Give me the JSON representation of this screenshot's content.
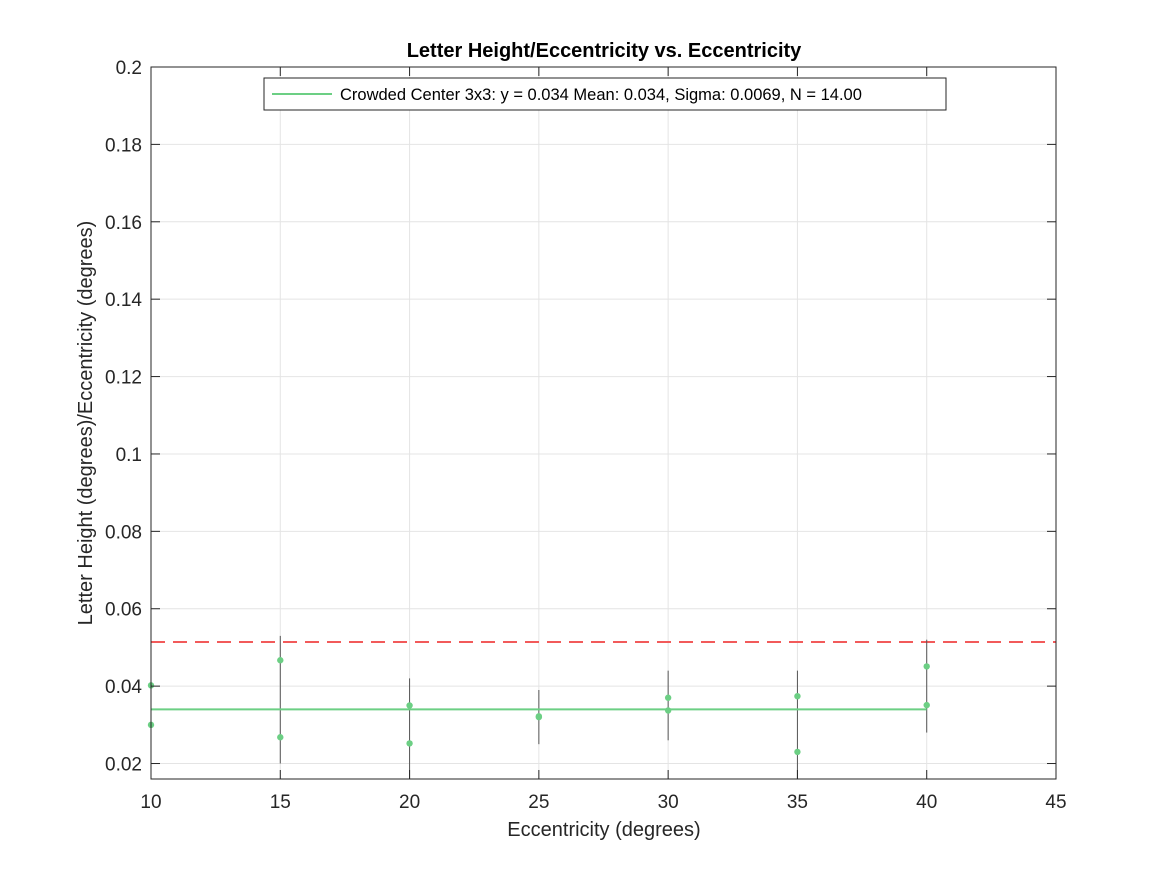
{
  "chart_data": {
    "type": "scatter",
    "title": "Letter Height/Eccentricity vs. Eccentricity",
    "xlabel": "Eccentricity (degrees)",
    "ylabel": "Letter Height (degrees)/Eccentricity (degrees)",
    "xlim": [
      10,
      45
    ],
    "ylim": [
      0.016,
      0.2
    ],
    "xticks": [
      10,
      15,
      20,
      25,
      30,
      35,
      40,
      45
    ],
    "xtick_labels": [
      "10",
      "15",
      "20",
      "25",
      "30",
      "35",
      "40",
      "45"
    ],
    "yticks": [
      0.02,
      0.04,
      0.06,
      0.08,
      0.1,
      0.12,
      0.14,
      0.16,
      0.18,
      0.2
    ],
    "ytick_labels": [
      "0.02",
      "0.04",
      "0.06",
      "0.08",
      "0.1",
      "0.12",
      "0.14",
      "0.16",
      "0.18",
      "0.2"
    ],
    "grid": true,
    "legend_position": "top-center",
    "legend": [
      "Crowded Center 3x3: y = 0.034 Mean: 0.034, Sigma: 0.0069, N = 14.00"
    ],
    "points": [
      {
        "x": 10,
        "y": 0.0402
      },
      {
        "x": 10,
        "y": 0.03
      },
      {
        "x": 15,
        "y": 0.0467
      },
      {
        "x": 15,
        "y": 0.0268
      },
      {
        "x": 20,
        "y": 0.035
      },
      {
        "x": 20,
        "y": 0.0252
      },
      {
        "x": 25,
        "y": 0.0322
      },
      {
        "x": 25,
        "y": 0.032
      },
      {
        "x": 30,
        "y": 0.037
      },
      {
        "x": 30,
        "y": 0.0337
      },
      {
        "x": 35,
        "y": 0.0374
      },
      {
        "x": 35,
        "y": 0.023
      },
      {
        "x": 40,
        "y": 0.0451
      },
      {
        "x": 40,
        "y": 0.0351
      }
    ],
    "error_bars": [
      {
        "x": 10,
        "low": 0.016,
        "high": 0.047
      },
      {
        "x": 15,
        "low": 0.02,
        "high": 0.053
      },
      {
        "x": 20,
        "low": 0.016,
        "high": 0.042
      },
      {
        "x": 25,
        "low": 0.025,
        "high": 0.039
      },
      {
        "x": 30,
        "low": 0.026,
        "high": 0.044
      },
      {
        "x": 35,
        "low": 0.016,
        "high": 0.044
      },
      {
        "x": 40,
        "low": 0.028,
        "high": 0.052
      }
    ],
    "fit_line": {
      "x": [
        10,
        40
      ],
      "y": 0.034
    },
    "reference_line": {
      "y": 0.0514,
      "style": "dashed"
    },
    "colors": {
      "points": "#6ccf84",
      "fit_line": "#6ccf84",
      "error_bars": "#555555",
      "reference_line": "#f25a5a",
      "grid": "#e4e4e4",
      "axes": "#262626"
    }
  }
}
